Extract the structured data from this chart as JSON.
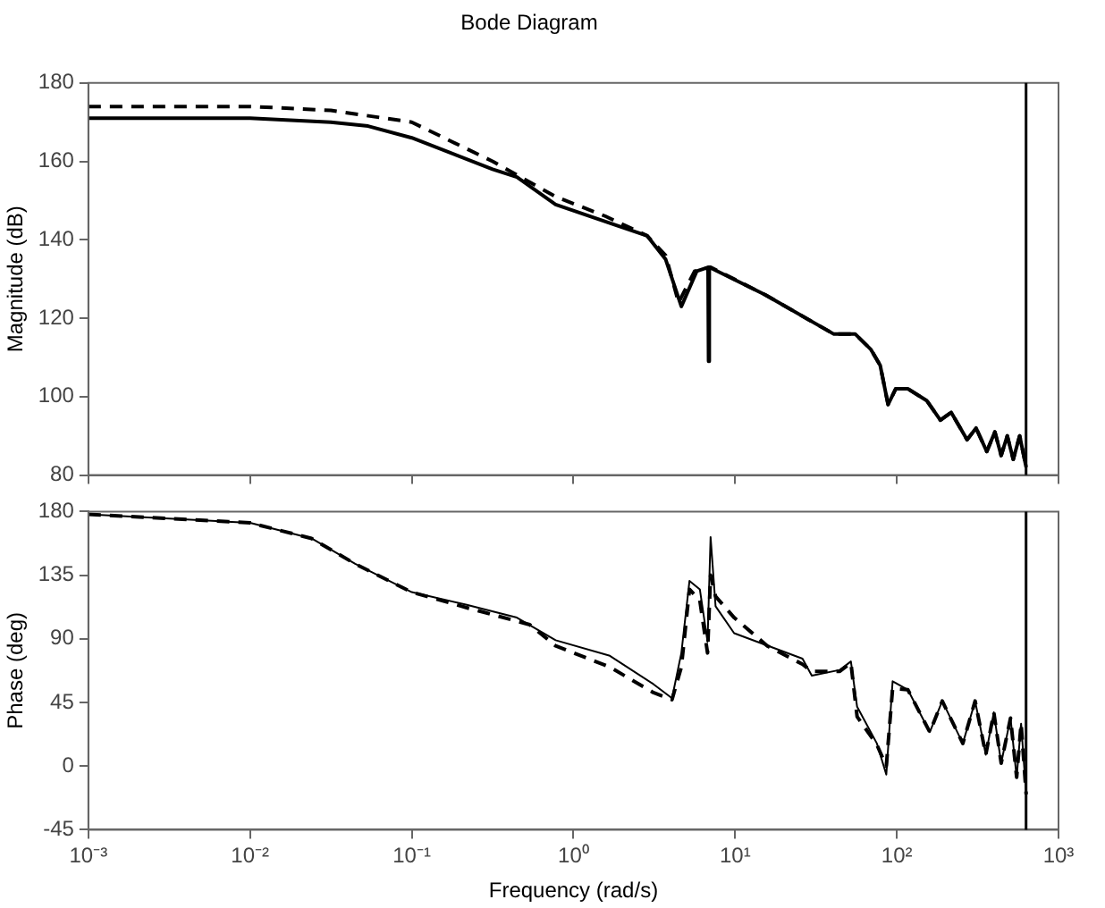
{
  "chart_data": [
    {
      "type": "line",
      "title": "Bode Diagram",
      "ylabel": "Magnitude (dB)",
      "log": "x",
      "legend": false,
      "tick_labels": "y",
      "xlim": [
        0.001,
        1000
      ],
      "xticks": [
        {
          "value": 0.001,
          "label": null
        },
        {
          "value": 0.01,
          "label": null
        },
        {
          "value": 0.1,
          "label": null
        },
        {
          "value": 1,
          "label": null
        },
        {
          "value": 10,
          "label": null
        },
        {
          "value": 100,
          "label": null
        },
        {
          "value": 1000,
          "label": null
        }
      ],
      "ylim": [
        80,
        180
      ],
      "yticks": [
        80,
        100,
        120,
        140,
        160,
        180
      ],
      "ref_lines": [
        {
          "axis": "x",
          "value": 630,
          "color": "#000000"
        }
      ],
      "series": [
        {
          "color": "#000000",
          "line_style": "solid",
          "x": [
            0.001,
            0.01,
            0.0316,
            0.0537,
            0.1,
            0.316,
            0.447,
            0.776,
            2.86,
            3.72,
            4.65,
            5.79,
            6.8,
            6.85,
            6.92,
            15.3,
            40.6,
            55.2,
            69.2,
            78.9,
            88.3,
            98.4,
            117,
            153,
            186,
            217,
            272,
            309,
            360,
            404,
            442,
            482,
            525,
            575,
            631
          ],
          "values": [
            171,
            171,
            170,
            169,
            166,
            158,
            156,
            149,
            141,
            135,
            123,
            132,
            133,
            109,
            133,
            126,
            116,
            116,
            112,
            108,
            98,
            102,
            102,
            99,
            94,
            96,
            89,
            92,
            86,
            91,
            85,
            90,
            84,
            90,
            82
          ]
        },
        {
          "color": "#000000",
          "line_style": "dashed",
          "x": [
            0.001,
            0.01,
            0.0316,
            0.1,
            0.316,
            0.776,
            1.58,
            2.86,
            3.72,
            4.47,
            5.62,
            7.05,
            15.3,
            40.6,
            55.2,
            69.2,
            78.9,
            88.3,
            98.4,
            117,
            153,
            186,
            217,
            272,
            309,
            360,
            404,
            442,
            482,
            525,
            575,
            631
          ],
          "values": [
            174,
            174,
            173,
            170,
            160,
            151,
            146,
            141,
            136,
            124,
            132,
            133,
            126,
            116,
            116,
            112,
            108,
            98,
            102,
            102,
            99,
            94,
            96,
            89,
            92,
            86,
            91,
            85,
            90,
            84,
            90,
            82
          ]
        }
      ]
    },
    {
      "type": "line",
      "xlabel": "Frequency (rad/s)",
      "ylabel": "Phase (deg)",
      "log": "x",
      "legend": false,
      "xlim": [
        0.001,
        1000
      ],
      "xticks": [
        {
          "value": 0.001,
          "label": "10⁻³"
        },
        {
          "value": 0.01,
          "label": "10⁻²"
        },
        {
          "value": 0.1,
          "label": "10⁻¹"
        },
        {
          "value": 1,
          "label": "10⁰"
        },
        {
          "value": 10,
          "label": "10¹"
        },
        {
          "value": 100,
          "label": "10²"
        },
        {
          "value": 1000,
          "label": "10³"
        }
      ],
      "ylim": [
        -45,
        180
      ],
      "yticks": [
        -45,
        0,
        45,
        90,
        135,
        180
      ],
      "ref_lines": [
        {
          "axis": "x",
          "value": 630,
          "color": "#000000"
        }
      ],
      "series": [
        {
          "color": "#000000",
          "line_style": "solid",
          "x": [
            0.001,
            0.01,
            0.024,
            0.0447,
            0.1,
            0.219,
            0.447,
            0.776,
            1.68,
            3.12,
            4.07,
            4.65,
            5.22,
            6.05,
            6.75,
            7.05,
            7.57,
            9.86,
            26.1,
            29.8,
            44.4,
            52.0,
            56.8,
            75.3,
            86.1,
            94.2,
            117,
            160,
            191,
            256,
            305,
            355,
            398,
            442,
            505,
            551,
            587,
            631
          ],
          "values": [
            178,
            172,
            161,
            143,
            123,
            114,
            105,
            89,
            78,
            58,
            48,
            80,
            131,
            125,
            88,
            162,
            113,
            94,
            76,
            64,
            68,
            74,
            42,
            16,
            -6,
            60,
            54,
            24,
            46,
            16,
            46,
            8,
            38,
            2,
            34,
            -8,
            30,
            -20
          ]
        },
        {
          "color": "#000000",
          "line_style": "dashed",
          "x": [
            0.001,
            0.01,
            0.024,
            0.0447,
            0.1,
            0.219,
            0.537,
            0.776,
            1.68,
            3.12,
            4.07,
            4.65,
            5.22,
            6.05,
            6.75,
            7.05,
            7.57,
            9.86,
            15.8,
            26.1,
            29.8,
            44.4,
            52.0,
            56.8,
            75.3,
            86.1,
            94.2,
            117,
            160,
            191,
            256,
            305,
            355,
            398,
            442,
            505,
            551,
            587,
            631
          ],
          "values": [
            178,
            172,
            161,
            143,
            123,
            112,
            100,
            85,
            70,
            52,
            47,
            70,
            125,
            117,
            80,
            135,
            120,
            105,
            85,
            72,
            67,
            67,
            73,
            35,
            15,
            0,
            55,
            54,
            24,
            46,
            16,
            46,
            8,
            38,
            2,
            34,
            -8,
            30,
            -20
          ]
        }
      ]
    }
  ]
}
